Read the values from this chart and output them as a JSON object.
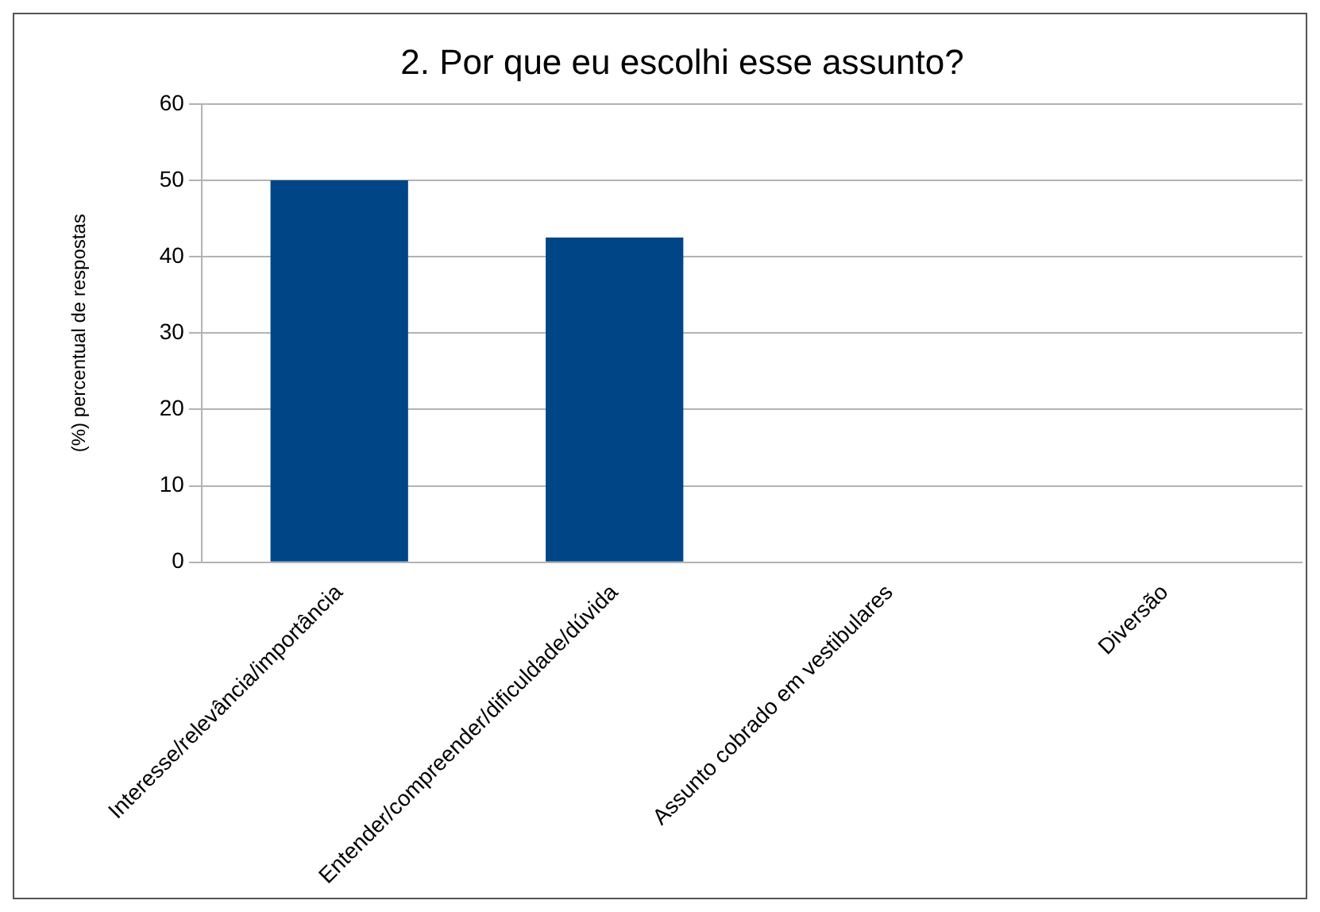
{
  "chart_data": {
    "type": "bar",
    "title": "2. Por que eu escolhi esse assunto?",
    "ylabel": "(%) percentual de respostas",
    "categories": [
      "Interesse/relevância/importância",
      "Entender/compreender/dificuldade/dúvida",
      "Assunto cobrado em vestibulares",
      "Diversão"
    ],
    "values": [
      50,
      42.5,
      0,
      0
    ],
    "color": "#004586",
    "ylim": [
      0,
      60
    ],
    "yticks": [
      0,
      10,
      20,
      30,
      40,
      50,
      60
    ],
    "grid": "y",
    "legend": false
  }
}
